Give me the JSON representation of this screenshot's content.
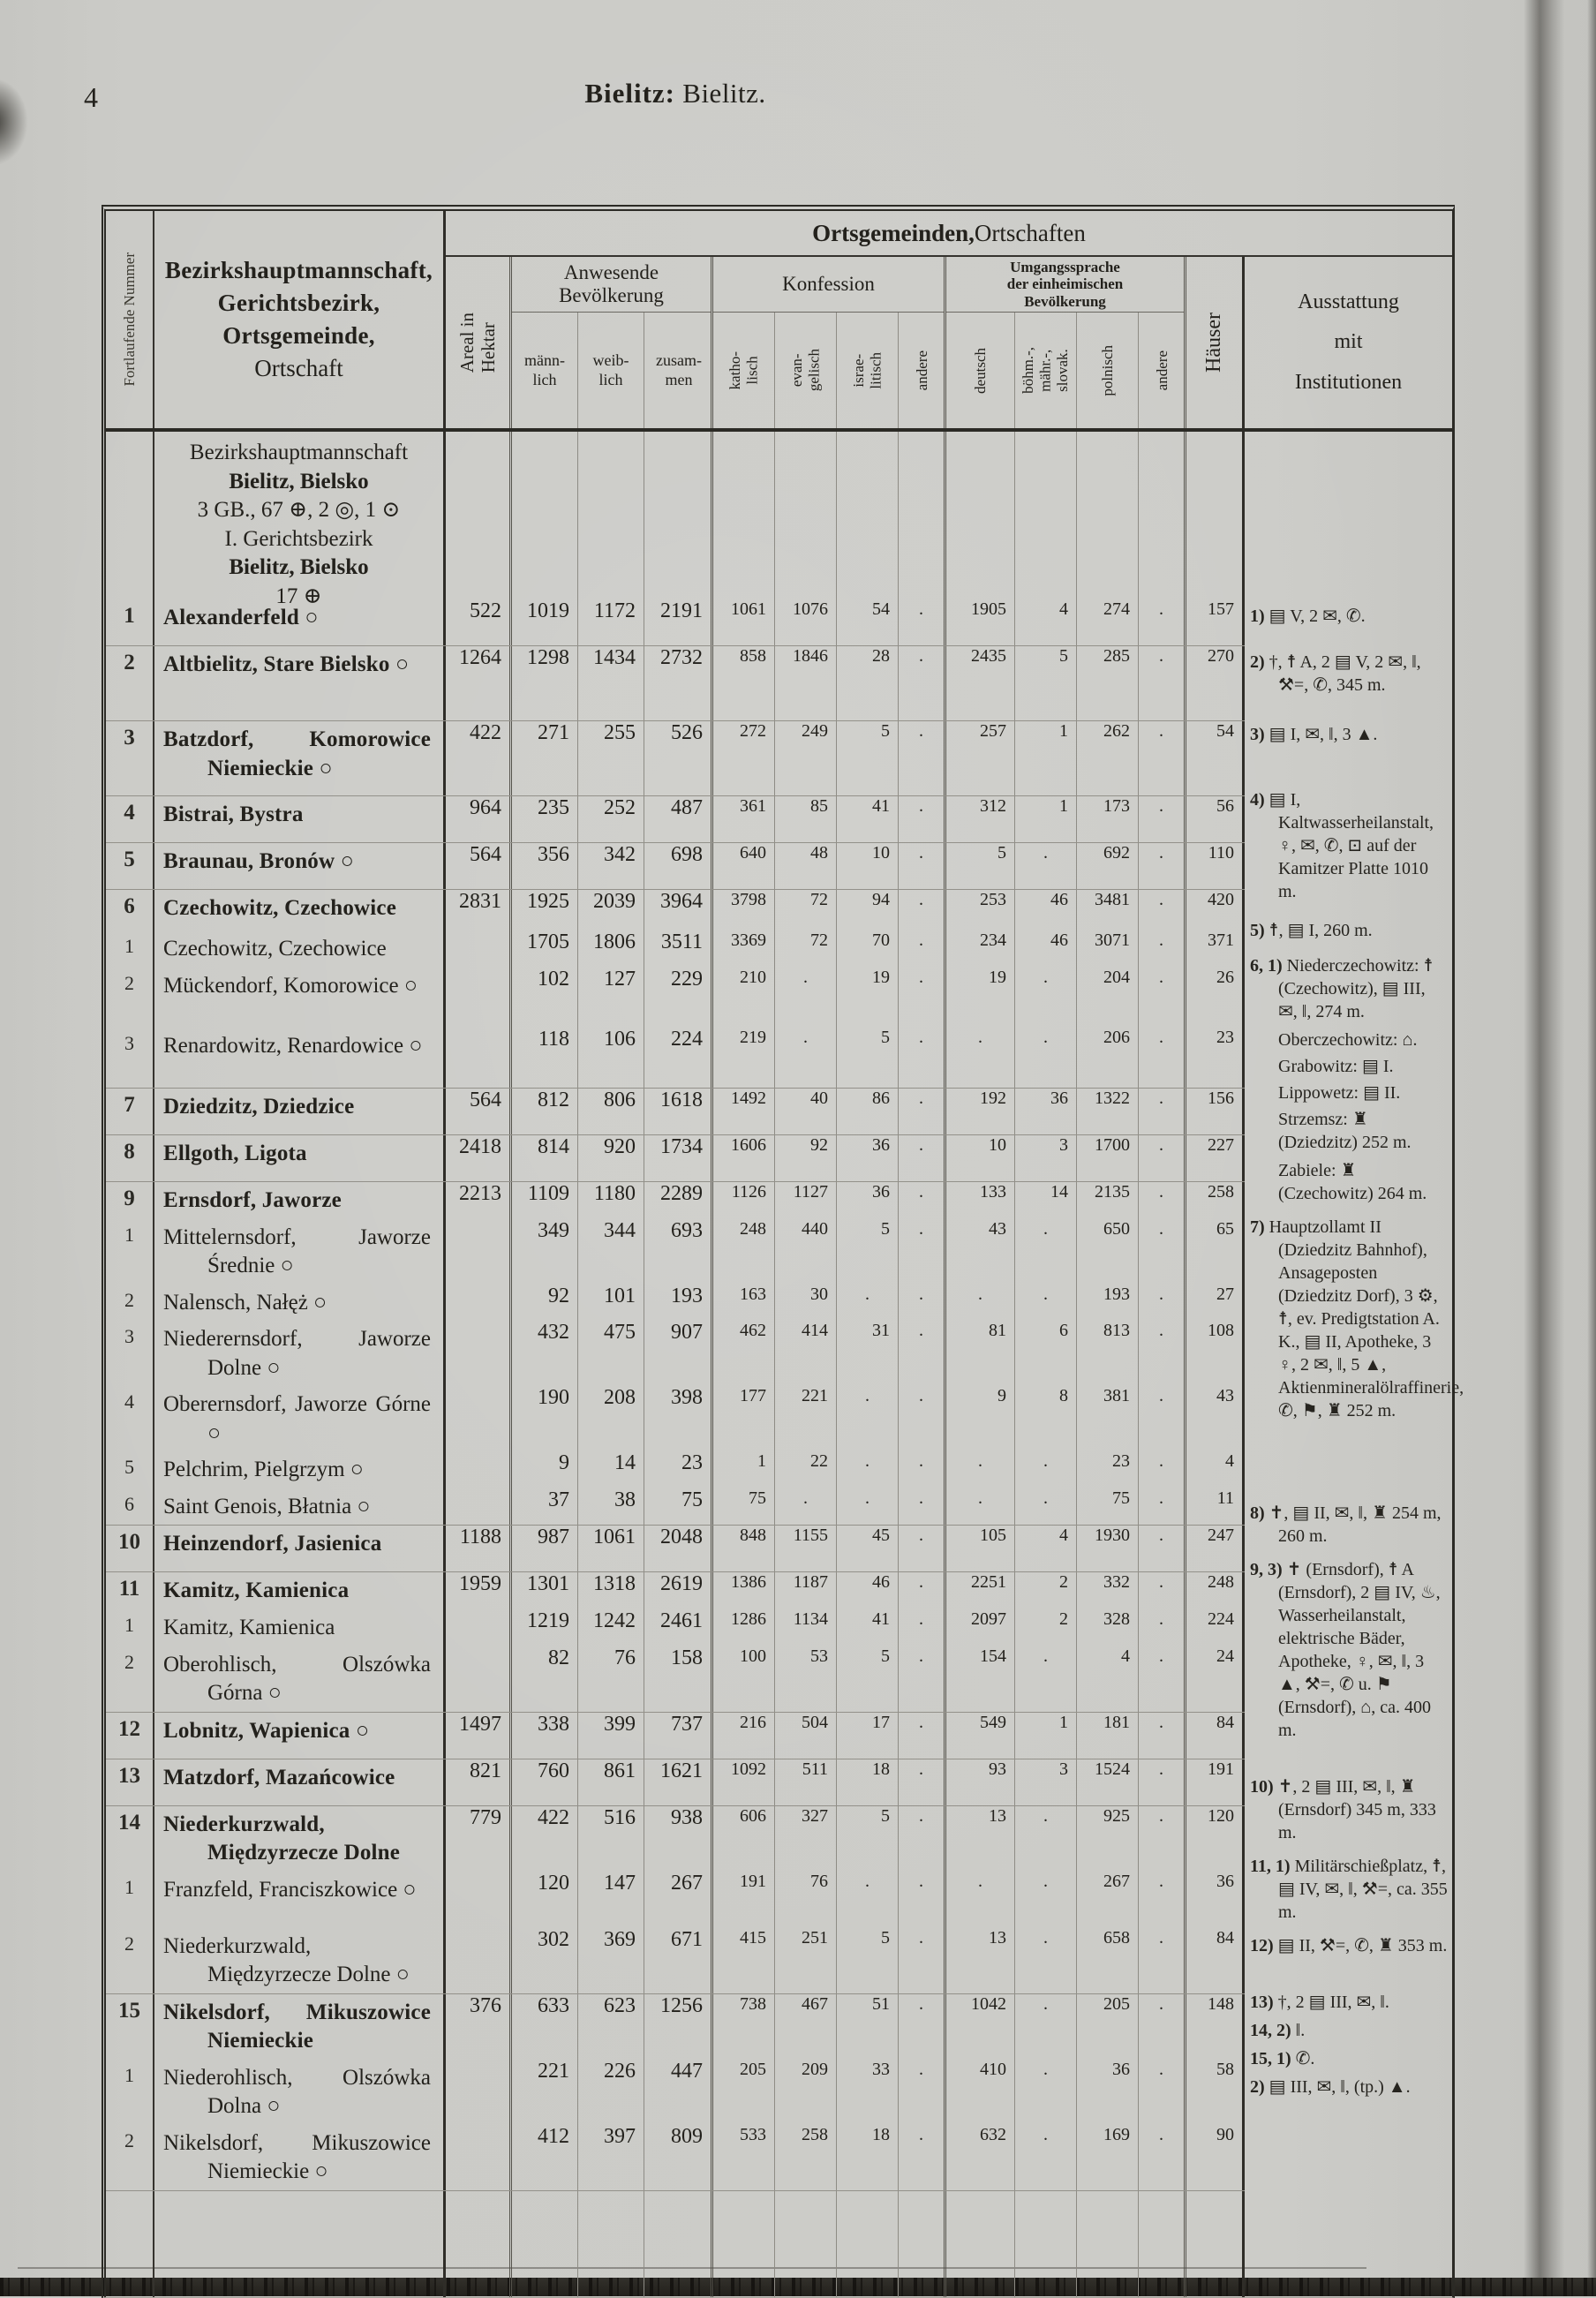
{
  "page": {
    "number": "4",
    "title_bold": "Bielitz:",
    "title_rest": "Bielitz."
  },
  "header": {
    "num_col": "Fortlaufende Nummer",
    "name_lines": [
      "Bezirkshauptmannschaft,",
      "Gerichtsbezirk,",
      "Ortsgemeinde,",
      "Ortschaft"
    ],
    "areal_col": "Areal in\nHektar",
    "group_top_bold": "Ortsgemeinden,",
    "group_top_rest": " Ortschaften",
    "bev_title": "Anwesende\nBevölkerung",
    "bev_cols": [
      "männ-\nlich",
      "weib-\nlich",
      "zusam-\nmen"
    ],
    "konf_title": "Konfession",
    "konf_cols": [
      "katho-\nlisch",
      "evan-\ngelisch",
      "israe-\nlitisch",
      "andere"
    ],
    "sprache_title": "Umgangssprache\nder einheimischen\nBevölkerung",
    "sprache_cols": [
      "deutsch",
      "böhm.-,\nmähr.-,\nslovak.",
      "polnisch",
      "andere"
    ],
    "haeuser_col": "Häuser",
    "ausstattung_col": "Ausstattung\nmit\nInstitutionen"
  },
  "intro": {
    "line1": "Bezirkshauptmannschaft",
    "line2": "Bielitz, Bielsko",
    "line3": "3 GB., 67 ⊕, 2 ◎, 1 ⊙",
    "line4": "I. Gerichtsbezirk",
    "line5": "Bielitz, Bielsko",
    "line6": "17 ⊕"
  },
  "rows": [
    {
      "num": "1",
      "main": true,
      "name": "Alexanderfeld ○",
      "areal": "522",
      "ml": "1019",
      "wl": "1172",
      "zs": "2191",
      "ka": "1061",
      "ev": "1076",
      "is": "54",
      "a1": ".",
      "de": "1905",
      "bm": "4",
      "pl": "274",
      "a2": ".",
      "hs": "157"
    },
    {
      "num": "2",
      "main": true,
      "name": "Altbielitz, Stare Bielsko ○",
      "areal": "1264",
      "ml": "1298",
      "wl": "1434",
      "zs": "2732",
      "ka": "858",
      "ev": "1846",
      "is": "28",
      "a1": ".",
      "de": "2435",
      "bm": "5",
      "pl": "285",
      "a2": ".",
      "hs": "270"
    },
    {
      "num": "3",
      "main": true,
      "name": "Batzdorf, Komorowice Niemieckie ○",
      "areal": "422",
      "ml": "271",
      "wl": "255",
      "zs": "526",
      "ka": "272",
      "ev": "249",
      "is": "5",
      "a1": ".",
      "de": "257",
      "bm": "1",
      "pl": "262",
      "a2": ".",
      "hs": "54"
    },
    {
      "num": "4",
      "main": true,
      "name": "Bistrai, Bystra",
      "areal": "964",
      "ml": "235",
      "wl": "252",
      "zs": "487",
      "ka": "361",
      "ev": "85",
      "is": "41",
      "a1": ".",
      "de": "312",
      "bm": "1",
      "pl": "173",
      "a2": ".",
      "hs": "56"
    },
    {
      "num": "5",
      "main": true,
      "name": "Braunau, Bronów ○",
      "areal": "564",
      "ml": "356",
      "wl": "342",
      "zs": "698",
      "ka": "640",
      "ev": "48",
      "is": "10",
      "a1": ".",
      "de": "5",
      "bm": ".",
      "pl": "692",
      "a2": ".",
      "hs": "110"
    },
    {
      "num": "6",
      "main": true,
      "name": "Czechowitz, Czechowice",
      "areal": "2831",
      "ml": "1925",
      "wl": "2039",
      "zs": "3964",
      "ka": "3798",
      "ev": "72",
      "is": "94",
      "a1": ".",
      "de": "253",
      "bm": "46",
      "pl": "3481",
      "a2": ".",
      "hs": "420"
    },
    {
      "num": "1",
      "main": false,
      "name": "Czechowitz, Czechowice",
      "areal": "",
      "ml": "1705",
      "wl": "1806",
      "zs": "3511",
      "ka": "3369",
      "ev": "72",
      "is": "70",
      "a1": ".",
      "de": "234",
      "bm": "46",
      "pl": "3071",
      "a2": ".",
      "hs": "371"
    },
    {
      "num": "2",
      "main": false,
      "name": "Mückendorf, Komorowice ○",
      "areal": "",
      "ml": "102",
      "wl": "127",
      "zs": "229",
      "ka": "210",
      "ev": ".",
      "is": "19",
      "a1": ".",
      "de": "19",
      "bm": ".",
      "pl": "204",
      "a2": ".",
      "hs": "26"
    },
    {
      "num": "3",
      "main": false,
      "name": "Renardowitz, Renardowice ○",
      "areal": "",
      "ml": "118",
      "wl": "106",
      "zs": "224",
      "ka": "219",
      "ev": ".",
      "is": "5",
      "a1": ".",
      "de": ".",
      "bm": ".",
      "pl": "206",
      "a2": ".",
      "hs": "23"
    },
    {
      "num": "7",
      "main": true,
      "name": "Dziedzitz, Dziedzice",
      "areal": "564",
      "ml": "812",
      "wl": "806",
      "zs": "1618",
      "ka": "1492",
      "ev": "40",
      "is": "86",
      "a1": ".",
      "de": "192",
      "bm": "36",
      "pl": "1322",
      "a2": ".",
      "hs": "156"
    },
    {
      "num": "8",
      "main": true,
      "name": "Ellgoth, Ligota",
      "areal": "2418",
      "ml": "814",
      "wl": "920",
      "zs": "1734",
      "ka": "1606",
      "ev": "92",
      "is": "36",
      "a1": ".",
      "de": "10",
      "bm": "3",
      "pl": "1700",
      "a2": ".",
      "hs": "227"
    },
    {
      "num": "9",
      "main": true,
      "name": "Ernsdorf, Jaworze",
      "areal": "2213",
      "ml": "1109",
      "wl": "1180",
      "zs": "2289",
      "ka": "1126",
      "ev": "1127",
      "is": "36",
      "a1": ".",
      "de": "133",
      "bm": "14",
      "pl": "2135",
      "a2": ".",
      "hs": "258"
    },
    {
      "num": "1",
      "main": false,
      "name": "Mittelernsdorf, Jaworze Średnie ○",
      "areal": "",
      "ml": "349",
      "wl": "344",
      "zs": "693",
      "ka": "248",
      "ev": "440",
      "is": "5",
      "a1": ".",
      "de": "43",
      "bm": ".",
      "pl": "650",
      "a2": ".",
      "hs": "65"
    },
    {
      "num": "2",
      "main": false,
      "name": "Nalensch, Nałęż ○",
      "areal": "",
      "ml": "92",
      "wl": "101",
      "zs": "193",
      "ka": "163",
      "ev": "30",
      "is": ".",
      "a1": ".",
      "de": ".",
      "bm": ".",
      "pl": "193",
      "a2": ".",
      "hs": "27"
    },
    {
      "num": "3",
      "main": false,
      "name": "Niederernsdorf, Jaworze Dolne ○",
      "areal": "",
      "ml": "432",
      "wl": "475",
      "zs": "907",
      "ka": "462",
      "ev": "414",
      "is": "31",
      "a1": ".",
      "de": "81",
      "bm": "6",
      "pl": "813",
      "a2": ".",
      "hs": "108"
    },
    {
      "num": "4",
      "main": false,
      "name": "Oberernsdorf, Jaworze Górne ○",
      "areal": "",
      "ml": "190",
      "wl": "208",
      "zs": "398",
      "ka": "177",
      "ev": "221",
      "is": ".",
      "a1": ".",
      "de": "9",
      "bm": "8",
      "pl": "381",
      "a2": ".",
      "hs": "43"
    },
    {
      "num": "5",
      "main": false,
      "name": "Pelchrim, Pielgrzym ○",
      "areal": "",
      "ml": "9",
      "wl": "14",
      "zs": "23",
      "ka": "1",
      "ev": "22",
      "is": ".",
      "a1": ".",
      "de": ".",
      "bm": ".",
      "pl": "23",
      "a2": ".",
      "hs": "4"
    },
    {
      "num": "6",
      "main": false,
      "name": "Saint Genois, Błatnia ○",
      "areal": "",
      "ml": "37",
      "wl": "38",
      "zs": "75",
      "ka": "75",
      "ev": ".",
      "is": ".",
      "a1": ".",
      "de": ".",
      "bm": ".",
      "pl": "75",
      "a2": ".",
      "hs": "11"
    },
    {
      "num": "10",
      "main": true,
      "name": "Heinzendorf, Jasienica",
      "areal": "1188",
      "ml": "987",
      "wl": "1061",
      "zs": "2048",
      "ka": "848",
      "ev": "1155",
      "is": "45",
      "a1": ".",
      "de": "105",
      "bm": "4",
      "pl": "1930",
      "a2": ".",
      "hs": "247"
    },
    {
      "num": "11",
      "main": true,
      "name": "Kamitz, Kamienica",
      "areal": "1959",
      "ml": "1301",
      "wl": "1318",
      "zs": "2619",
      "ka": "1386",
      "ev": "1187",
      "is": "46",
      "a1": ".",
      "de": "2251",
      "bm": "2",
      "pl": "332",
      "a2": ".",
      "hs": "248"
    },
    {
      "num": "1",
      "main": false,
      "name": "Kamitz, Kamienica",
      "areal": "",
      "ml": "1219",
      "wl": "1242",
      "zs": "2461",
      "ka": "1286",
      "ev": "1134",
      "is": "41",
      "a1": ".",
      "de": "2097",
      "bm": "2",
      "pl": "328",
      "a2": ".",
      "hs": "224"
    },
    {
      "num": "2",
      "main": false,
      "name": "Oberohlisch, Olszówka Górna ○",
      "areal": "",
      "ml": "82",
      "wl": "76",
      "zs": "158",
      "ka": "100",
      "ev": "53",
      "is": "5",
      "a1": ".",
      "de": "154",
      "bm": ".",
      "pl": "4",
      "a2": ".",
      "hs": "24"
    },
    {
      "num": "12",
      "main": true,
      "name": "Lobnitz, Wapienica ○",
      "areal": "1497",
      "ml": "338",
      "wl": "399",
      "zs": "737",
      "ka": "216",
      "ev": "504",
      "is": "17",
      "a1": ".",
      "de": "549",
      "bm": "1",
      "pl": "181",
      "a2": ".",
      "hs": "84"
    },
    {
      "num": "13",
      "main": true,
      "name": "Matzdorf, Mazańcowice",
      "areal": "821",
      "ml": "760",
      "wl": "861",
      "zs": "1621",
      "ka": "1092",
      "ev": "511",
      "is": "18",
      "a1": ".",
      "de": "93",
      "bm": "3",
      "pl": "1524",
      "a2": ".",
      "hs": "191"
    },
    {
      "num": "14",
      "main": true,
      "name": "Niederkurzwald, Międzyrzecze Dolne",
      "areal": "779",
      "ml": "422",
      "wl": "516",
      "zs": "938",
      "ka": "606",
      "ev": "327",
      "is": "5",
      "a1": ".",
      "de": "13",
      "bm": ".",
      "pl": "925",
      "a2": ".",
      "hs": "120"
    },
    {
      "num": "1",
      "main": false,
      "name": "Franzfeld, Franciszkowice ○",
      "areal": "",
      "ml": "120",
      "wl": "147",
      "zs": "267",
      "ka": "191",
      "ev": "76",
      "is": ".",
      "a1": ".",
      "de": ".",
      "bm": ".",
      "pl": "267",
      "a2": ".",
      "hs": "36"
    },
    {
      "num": "2",
      "main": false,
      "name": "Niederkurzwald, Międzyrzecze Dolne ○",
      "areal": "",
      "ml": "302",
      "wl": "369",
      "zs": "671",
      "ka": "415",
      "ev": "251",
      "is": "5",
      "a1": ".",
      "de": "13",
      "bm": ".",
      "pl": "658",
      "a2": ".",
      "hs": "84"
    },
    {
      "num": "15",
      "main": true,
      "name": "Nikelsdorf, Mikuszowice Niemieckie",
      "areal": "376",
      "ml": "633",
      "wl": "623",
      "zs": "1256",
      "ka": "738",
      "ev": "467",
      "is": "51",
      "a1": ".",
      "de": "1042",
      "bm": ".",
      "pl": "205",
      "a2": ".",
      "hs": "148"
    },
    {
      "num": "1",
      "main": false,
      "name": "Niederohlisch, Olszówka Dolna ○",
      "areal": "",
      "ml": "221",
      "wl": "226",
      "zs": "447",
      "ka": "205",
      "ev": "209",
      "is": "33",
      "a1": ".",
      "de": "410",
      "bm": ".",
      "pl": "36",
      "a2": ".",
      "hs": "58"
    },
    {
      "num": "2",
      "main": false,
      "name": "Nikelsdorf, Mikuszowice Niemieckie ○",
      "areal": "",
      "ml": "412",
      "wl": "397",
      "zs": "809",
      "ka": "533",
      "ev": "258",
      "is": "18",
      "a1": ".",
      "de": "632",
      "bm": ".",
      "pl": "169",
      "a2": ".",
      "hs": "90"
    }
  ],
  "notes": [
    {
      "label": "1)",
      "text": "▤ V, 2 ✉, ✆."
    },
    {
      "label": "2)",
      "text": "†, ☨ A, 2 ▤ V, 2 ✉, ‖, ⚒=, ✆, 345 m."
    },
    {
      "label": "3)",
      "text": "▤ I, ✉, ‖, 3 ▲."
    },
    {
      "label": "4)",
      "text": "▤ I, Kaltwasserheilanstalt, ♀, ✉, ✆, ⊡ auf der Kamitzer Platte 1010 m."
    },
    {
      "label": "5)",
      "text": "☨, ▤ I, 260 m."
    },
    {
      "label": "6, 1)",
      "text": "Niederczechowitz: ☨ (Czechowitz), ▤ III, ✉, ‖, 274 m."
    },
    {
      "label": "",
      "text": "Oberczechowitz: ⌂."
    },
    {
      "label": "",
      "text": "Grabowitz: ▤ I."
    },
    {
      "label": "",
      "text": "Lippowetz: ▤ II."
    },
    {
      "label": "",
      "text": "Strzemsz: ♜ (Dziedzitz) 252 m."
    },
    {
      "label": "",
      "text": "Zabiele: ♜ (Czechowitz) 264 m."
    },
    {
      "label": "7)",
      "text": "Hauptzollamt II (Dziedzitz Bahnhof), Ansageposten (Dziedzitz Dorf), 3 ⚙, ☨, ev. Predigtstation A. K., ▤ II, Apotheke, 3 ♀, 2 ✉, ‖, 5 ▲, Aktienmineralölraffinerie, ✆, ⚑, ♜ 252 m."
    },
    {
      "label": "8)",
      "text": "✝, ▤ II, ✉, ‖, ♜ 254 m, 260 m."
    },
    {
      "label": "9, 3)",
      "text": "✝ (Ernsdorf), ☨ A (Ernsdorf), 2 ▤ IV, ♨, Wasserheilanstalt, elektrische Bäder, Apotheke, ♀, ✉, ‖, 3 ▲, ⚒=, ✆ u. ⚑ (Ernsdorf), ⌂, ca. 400 m."
    },
    {
      "label": "10)",
      "text": "✝, 2 ▤ III, ✉, ‖, ♜ (Ernsdorf) 345 m, 333 m."
    },
    {
      "label": "11, 1)",
      "text": "Militärschießplatz, ☨, ▤ IV, ✉, ‖, ⚒=, ca. 355 m."
    },
    {
      "label": "12)",
      "text": "▤ II, ⚒=, ✆, ♜ 353 m."
    },
    {
      "label": "13)",
      "text": "†, 2 ▤ III, ✉, ‖."
    },
    {
      "label": "14, 2)",
      "text": "‖."
    },
    {
      "label": "15, 1)",
      "text": "✆."
    },
    {
      "label": "2)",
      "text": "▤ III, ✉, ‖, (tp.) ▲."
    }
  ]
}
